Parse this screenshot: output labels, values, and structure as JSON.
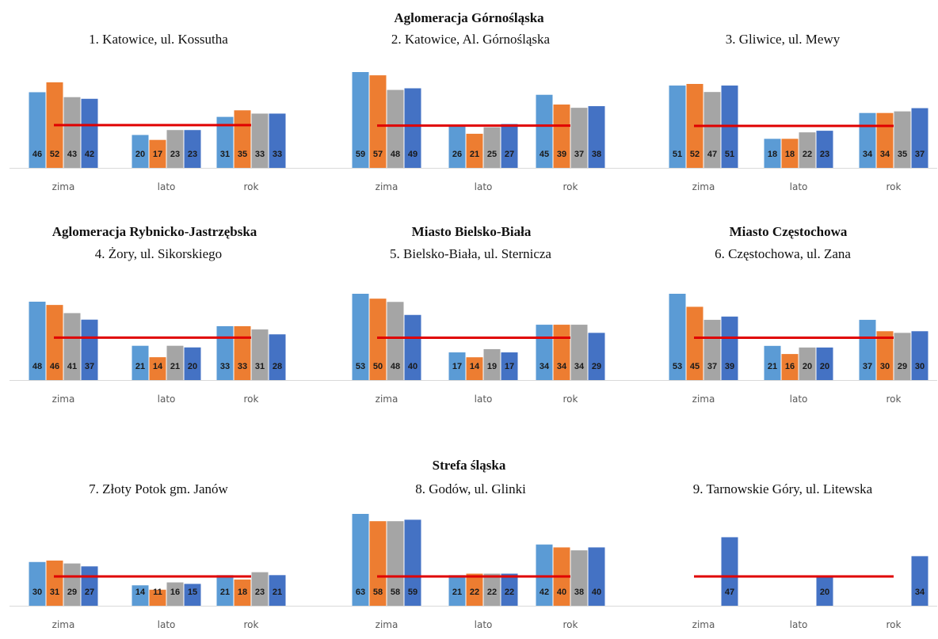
{
  "headings": {
    "top": "Aglomeracja Górnośląska",
    "rybnik": "Aglomeracja Rybnicko-Jastrzębska",
    "bielsko": "Miasto Bielsko-Biała",
    "czestochowa": "Miasto Częstochowa",
    "strefa": "Strefa śląska"
  },
  "colors": {
    "series": [
      "#5b9bd5",
      "#ed7d31",
      "#a5a5a5",
      "#4472c4"
    ],
    "limit_line": "#e00000",
    "axis": "#d9d9d9"
  },
  "chart_data": [
    {
      "type": "bar",
      "title": "1. Katowice, ul. Kossutha",
      "categories": [
        "zima",
        "lato",
        "rok"
      ],
      "groups": [
        [
          46,
          52,
          43,
          42
        ],
        [
          20,
          17,
          23,
          23
        ],
        [
          31,
          35,
          33,
          33
        ]
      ],
      "limit": 26,
      "ymax": 52
    },
    {
      "type": "bar",
      "title": "2. Katowice, Al. Górnośląska",
      "categories": [
        "zima",
        "lato",
        "rok"
      ],
      "groups": [
        [
          59,
          57,
          48,
          49
        ],
        [
          26,
          21,
          25,
          27
        ],
        [
          45,
          39,
          37,
          38
        ]
      ],
      "limit": 26,
      "ymax": 59
    },
    {
      "type": "bar",
      "title": "3. Gliwice, ul. Mewy",
      "categories": [
        "zima",
        "lato",
        "rok"
      ],
      "groups": [
        [
          51,
          52,
          47,
          51
        ],
        [
          18,
          18,
          22,
          23
        ],
        [
          34,
          34,
          35,
          37
        ]
      ],
      "limit": 26,
      "ymax": 52
    },
    {
      "type": "bar",
      "title": "4. Żory, ul. Sikorskiego",
      "categories": [
        "zima",
        "lato",
        "rok"
      ],
      "groups": [
        [
          48,
          46,
          41,
          37
        ],
        [
          21,
          14,
          21,
          20
        ],
        [
          33,
          33,
          31,
          28
        ]
      ],
      "limit": 26,
      "ymax": 48
    },
    {
      "type": "bar",
      "title": "5. Bielsko-Biała, ul. Sternicza",
      "categories": [
        "zima",
        "lato",
        "rok"
      ],
      "groups": [
        [
          53,
          50,
          48,
          40
        ],
        [
          17,
          14,
          19,
          17
        ],
        [
          34,
          34,
          34,
          29
        ]
      ],
      "limit": 26,
      "ymax": 53
    },
    {
      "type": "bar",
      "title": "6. Częstochowa, ul. Zana",
      "categories": [
        "zima",
        "lato",
        "rok"
      ],
      "groups": [
        [
          53,
          45,
          37,
          39
        ],
        [
          21,
          16,
          20,
          20
        ],
        [
          37,
          30,
          29,
          30
        ]
      ],
      "limit": 26,
      "ymax": 53
    },
    {
      "type": "bar",
      "title": "7. Złoty Potok gm. Janów",
      "categories": [
        "zima",
        "lato",
        "rok"
      ],
      "groups": [
        [
          30,
          31,
          29,
          27
        ],
        [
          14,
          11,
          16,
          15
        ],
        [
          21,
          18,
          23,
          21
        ]
      ],
      "limit": 26,
      "ymax": 63
    },
    {
      "type": "bar",
      "title": "8. Godów, ul. Glinki",
      "categories": [
        "zima",
        "lato",
        "rok"
      ],
      "groups": [
        [
          63,
          58,
          58,
          59
        ],
        [
          21,
          22,
          22,
          22
        ],
        [
          42,
          40,
          38,
          40
        ]
      ],
      "limit": 26,
      "ymax": 63
    },
    {
      "type": "bar",
      "title": "9. Tarnowskie Góry, ul. Litewska",
      "categories": [
        "zima",
        "lato",
        "rok"
      ],
      "groups": [
        [
          null,
          null,
          null,
          47
        ],
        [
          null,
          null,
          null,
          20
        ],
        [
          null,
          null,
          null,
          34
        ]
      ],
      "limit": 26,
      "ymax": 63
    }
  ]
}
